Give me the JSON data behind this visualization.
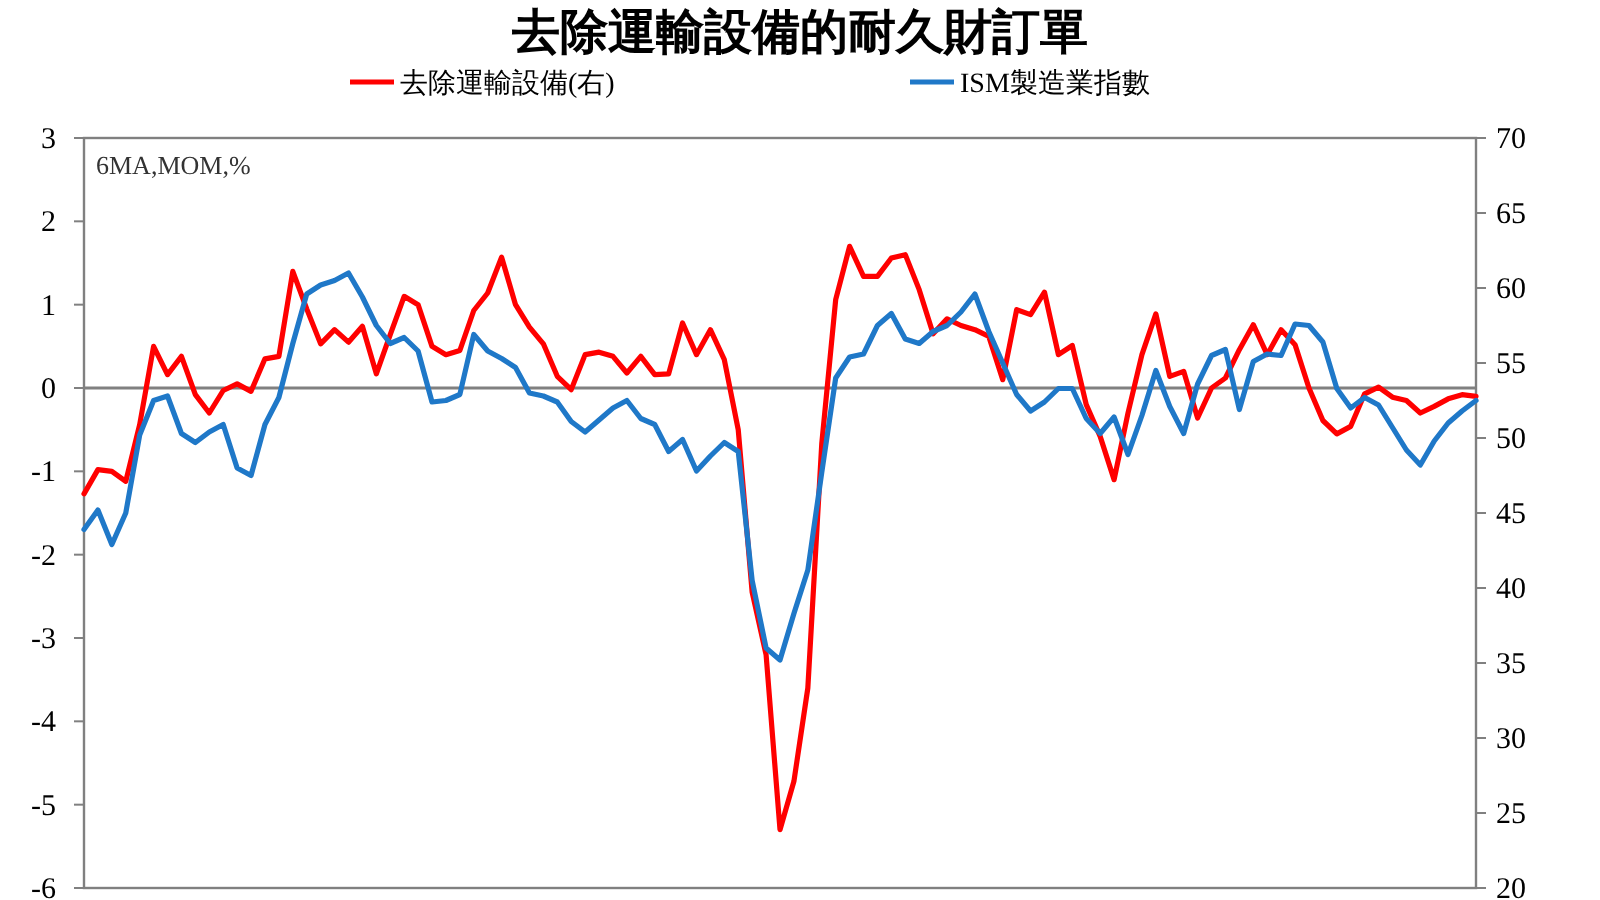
{
  "chart_data": {
    "type": "line",
    "title": "去除運輸設備的耐久財訂單",
    "annotations": [
      "6MA,MOM,%"
    ],
    "legend": "top",
    "tick_labels": "y",
    "categories": [
      null,
      null,
      null,
      null,
      null,
      null,
      null,
      null,
      null,
      null,
      null,
      null,
      null,
      null,
      null,
      null,
      null,
      null,
      null,
      null,
      null,
      null,
      null,
      null,
      null,
      null,
      null,
      null,
      null,
      null,
      null,
      null,
      null,
      null,
      null,
      null,
      null,
      null,
      null,
      null,
      null,
      null,
      null,
      null,
      null,
      null,
      null,
      null,
      null,
      null,
      null,
      null,
      null,
      null,
      null,
      null,
      null,
      null,
      null,
      null,
      null,
      null,
      null,
      null,
      null,
      null,
      null,
      null,
      null,
      null,
      null,
      null,
      null,
      null,
      null,
      null,
      null,
      null,
      null,
      null,
      null,
      null,
      null,
      null,
      null,
      null,
      null,
      null,
      null,
      null,
      null,
      null,
      null,
      null,
      null,
      null,
      null,
      null,
      null,
      null,
      null
    ],
    "ylim": [
      -6,
      3
    ],
    "yticks": [
      -6,
      -5,
      -4,
      -3,
      -2,
      -1,
      0,
      1,
      2,
      3
    ],
    "y2lim": [
      20,
      70
    ],
    "y2ticks": [
      20,
      25,
      30,
      35,
      40,
      45,
      50,
      55,
      60,
      65,
      70
    ],
    "ref_lines": [
      {
        "axis": "y",
        "value": 0,
        "color": "#808080"
      }
    ],
    "series": [
      {
        "name": "去除運輸設備(右)",
        "color": "#ff0000",
        "axis": "y",
        "values": [
          -1.27,
          -0.98,
          -1.0,
          -1.12,
          -0.44,
          0.5,
          0.16,
          0.38,
          -0.08,
          -0.3,
          -0.03,
          0.05,
          -0.04,
          0.35,
          0.38,
          1.4,
          0.95,
          0.53,
          0.7,
          0.55,
          0.74,
          0.17,
          0.64,
          1.1,
          1.0,
          0.5,
          0.4,
          0.45,
          0.93,
          1.14,
          1.57,
          1.0,
          0.73,
          0.53,
          0.14,
          -0.02,
          0.4,
          0.43,
          0.38,
          0.18,
          0.38,
          0.16,
          0.17,
          0.78,
          0.4,
          0.7,
          0.34,
          -0.5,
          -2.45,
          -3.2,
          -5.3,
          -4.72,
          -3.6,
          -0.67,
          1.06,
          1.7,
          1.34,
          1.34,
          1.56,
          1.6,
          1.18,
          0.65,
          0.83,
          0.75,
          0.7,
          0.62,
          0.1,
          0.94,
          0.88,
          1.15,
          0.4,
          0.51,
          -0.2,
          -0.58,
          -1.1,
          -0.3,
          0.4,
          0.89,
          0.14,
          0.2,
          -0.36,
          0.0,
          0.12,
          0.46,
          0.76,
          0.4,
          0.7,
          0.52,
          0.0,
          -0.39,
          -0.55,
          -0.46,
          -0.07,
          0.01,
          -0.11,
          -0.15,
          -0.3,
          -0.22,
          -0.13,
          -0.08,
          -0.1
        ]
      },
      {
        "name": "ISM製造業指數",
        "color": "#1f78c8",
        "axis": "y2",
        "values": [
          43.9,
          45.2,
          42.9,
          45.0,
          50.2,
          52.5,
          52.8,
          50.3,
          49.7,
          50.4,
          50.9,
          48.0,
          47.5,
          50.9,
          52.7,
          56.3,
          59.6,
          60.2,
          60.5,
          61.0,
          59.4,
          57.5,
          56.3,
          56.7,
          55.8,
          52.4,
          52.5,
          52.9,
          56.9,
          55.8,
          55.3,
          54.7,
          53.0,
          52.8,
          52.4,
          51.1,
          50.4,
          51.2,
          52.0,
          52.5,
          51.3,
          50.9,
          49.1,
          49.9,
          47.8,
          48.8,
          49.7,
          49.1,
          40.5,
          36.0,
          35.2,
          38.3,
          41.2,
          47.7,
          54.0,
          55.4,
          55.6,
          57.5,
          58.3,
          56.6,
          56.3,
          57.1,
          57.5,
          58.4,
          59.6,
          57.1,
          55.0,
          52.9,
          51.8,
          52.4,
          53.3,
          53.3,
          51.3,
          50.3,
          51.4,
          48.9,
          51.5,
          54.5,
          52.1,
          50.3,
          53.6,
          55.5,
          55.9,
          51.9,
          55.1,
          55.6,
          55.5,
          57.6,
          57.5,
          56.4,
          53.3,
          52.0,
          52.7,
          52.2,
          50.7,
          49.2,
          48.2,
          49.8,
          51.0,
          51.8,
          52.5
        ]
      }
    ]
  }
}
